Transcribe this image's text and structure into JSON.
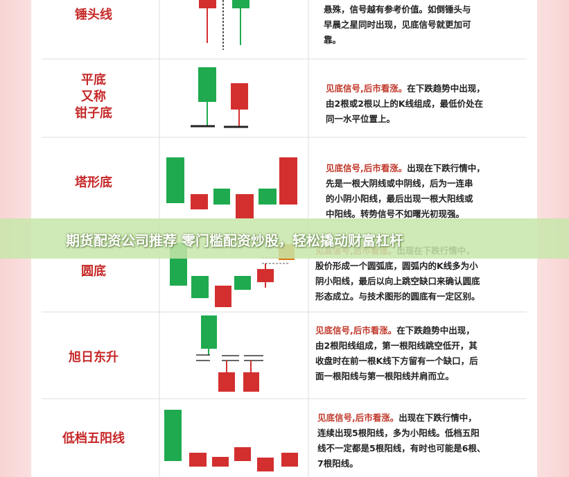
{
  "rows": [
    {
      "name": [
        "锤头线"
      ],
      "lines": [
        "悬殊，信号越有参考价值。如倒锤头与",
        "早晨之星同时出现，见底信号就更加可",
        "靠。"
      ]
    },
    {
      "name": [
        "平底",
        "又称",
        "钳子底"
      ],
      "lead": "见底信号,后市看涨。",
      "lines": [
        "在下跌趋势中出现，",
        "由2根或2根以上的K线组成，最低价处在",
        "同一水平位置上。"
      ]
    },
    {
      "name": [
        "塔形底"
      ],
      "lead": "见底信号,后市看涨。",
      "lines": [
        "出现在下跌行情中，",
        "先是一根大阴线或中阴线，后为一连串",
        "的小阴小阳线，最后出现一根大阳线或",
        "中阳线。转势信号不如曙光初现强。"
      ]
    },
    {
      "name": [
        "圆底"
      ],
      "lead": "见底信号,后市看涨。",
      "lines": [
        "出现在下跌行情中，",
        "股价形成一个圆弧底，圆弧内的K线多为小",
        "阴小阳线，最后以向上跳空缺口来确认圆底",
        "形态成立。与技术图形的圆底有一定区别。"
      ]
    },
    {
      "name": [
        "旭日东升"
      ],
      "lead": "见底信号,后市看涨。",
      "lines": [
        "在下跌趋势中出现，",
        "由2根阳线组成，第一根阳线跳空低开，其",
        "收盘时在前一根K线下方留有一个缺口，后",
        "面一根阳线与第一根阳线并肩而立。"
      ]
    },
    {
      "name": [
        "低档五阳线"
      ],
      "lead": "见底信号,后市看涨。",
      "lines": [
        "出现在下跌行情中，",
        "连续出现5根阳线，多为小阳线。低档五阳",
        "线不一定都是5根阳线，有时也可能是6根、",
        "7根阳线。"
      ]
    }
  ],
  "banner": "期货配资公司推荐 零门槛配资炒股，轻松撬动财富杠杆"
}
